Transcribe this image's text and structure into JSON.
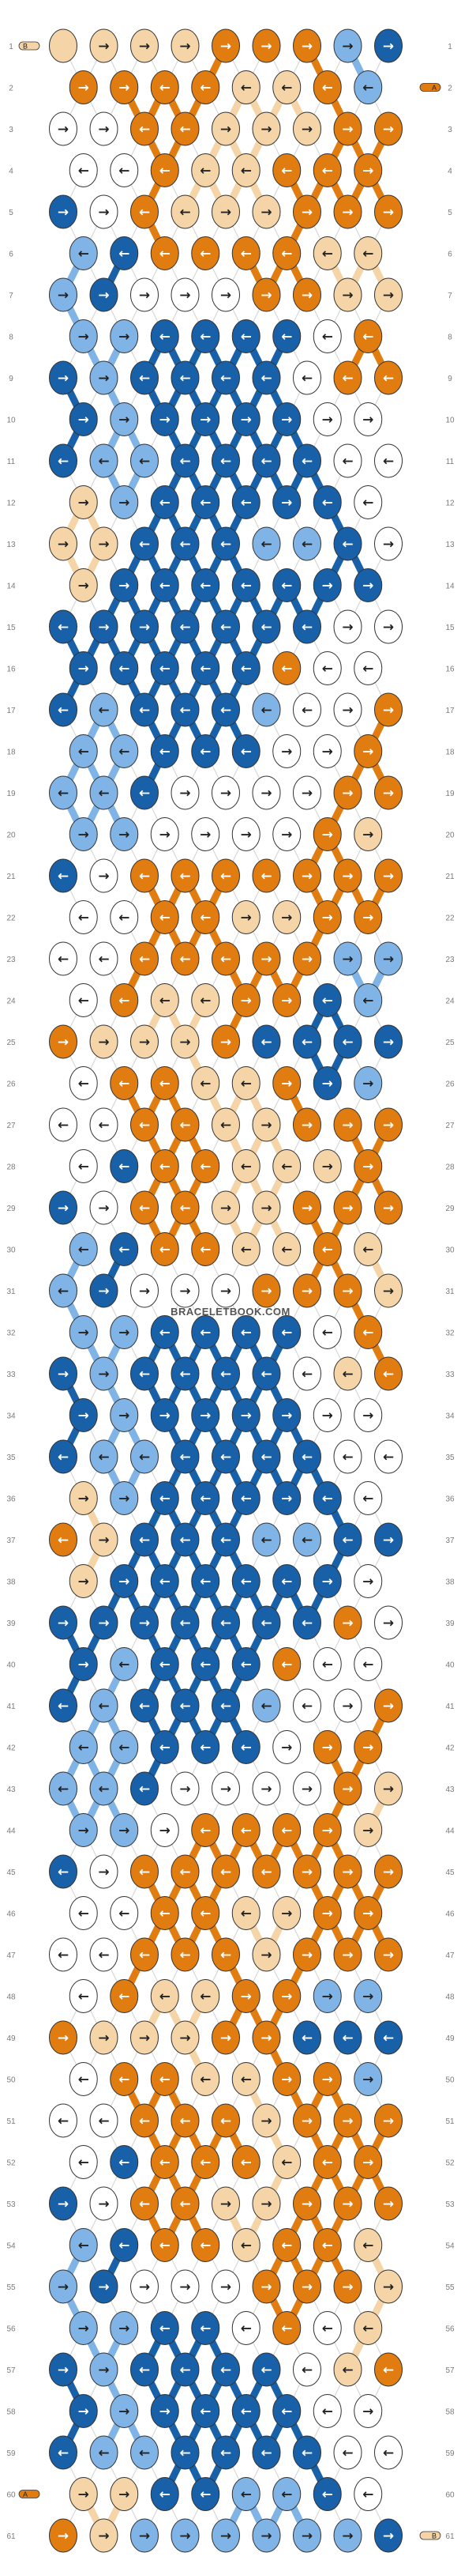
{
  "pattern": {
    "site": "BRACELETBOOK.COM",
    "rows": 61,
    "columns": 9,
    "left_end_markers": [
      {
        "row": 1,
        "label": "B"
      },
      {
        "row": 60,
        "label": "A"
      }
    ],
    "right_end_markers": [
      {
        "row": 2,
        "label": "A"
      },
      {
        "row": 61,
        "label": "B"
      }
    ],
    "colors": {
      "A": "#e07c10",
      "B": "#f5d5a8",
      "C": "#ffffff",
      "D": "#80b4e6",
      "E": "#1860a8"
    },
    "arrow_glyphs": {
      "R": "→",
      "L": "←"
    },
    "rows_data": [
      "BA BR BR BR AR AR AR DR ER",
      "AR AR AL AL BL BL AL DL",
      "CR CR AL AL BR BR BR AR AR",
      "CL CL AL BL BL AL AL AR",
      "ER CR AL BL BR BR AR AR AR",
      "DL EL AL AL AL AL BL BL",
      "DR ER CR CR CR AR AR BR BR",
      "DR DR EL EL EL EL CL AL",
      "ER DR EL EL EL EL CL AL AL",
      "ER DR ER ER ER ER CR CR",
      "EL DL DL EL EL EL EL CL CL",
      "BR DR EL EL EL ER EL CL",
      "BR BR EL EL EL DL DL EL CR",
      "BR ER EL EL EL EL ER ER",
      "EL ER ER EL EL EL EL CR CR",
      "ER EL EL EL EL AL CL CL",
      "EL DL EL EL EL DL CL CR AR",
      "DL DL EL EL EL CR CR AR",
      "DL DL EL CR CR CR CR AR AR",
      "DR DR CR CR CR CR AR BR",
      "EL CR AL AL AL AL AR AR AR",
      "CL CL AL AL BR BR AR AR",
      "CL CL AL AL AL AR AR DR DR",
      "CL AL BL BL AR AR EL DL",
      "AR BR BR BR AR EL EL EL ER",
      "CL AL AL BL BL AR ER DR",
      "CL CL AL AL BL BR AR AR AR",
      "CL EL AL AL BL BL BR AR",
      "ER CR AL AL BR BR AR AR AR",
      "DL EL AL AL BL BL AL BL",
      "DL ER CR CR CR AR AR AR BR",
      "DR DR EL EL EL EL CL AL",
      "ER DR EL EL EL EL CL BL AL",
      "ER DR ER ER ER ER CR CR",
      "EL DL DL EL EL EL EL CL CL",
      "BR DR EL EL EL ER EL CL",
      "AL BR EL EL EL DL DL EL ER",
      "BR ER EL EL EL EL ER CR",
      "ER ER ER EL EL EL EL AR CR",
      "ER DL EL EL EL AL CL CL",
      "EL DL EL EL EL DL CL CR AR",
      "DL DL EL EL EL CR AR AR",
      "DL DL EL CR CR CR CR AR BR",
      "DR DR CR AL AL AL AR BR",
      "EL CR AL AL AL AL AR AR AR",
      "CL CL AL AL BL BR AR AR",
      "CL CL AL AL AL BR AR AR AR",
      "CL AL BL BL AR AR DR DR",
      "AR BR BR BR AR AR EL EL EL",
      "CL AL AL BL BL AR AR DR",
      "CL CL AL AL AL BR AR AR AR",
      "CL EL AL AL AL BL AL AR",
      "ER CR AL AL BR BR AR AR AR",
      "DL EL AL AL BL AL AL BL",
      "DR ER CR CR CR AR AR AR BR",
      "DR DR EL EL CL AL CL BL",
      "ER DR EL EL EL EL CL BL AL",
      "ER DR ER EL EL EL CL CR",
      "EL DL DL EL EL EL EL CL CL",
      "BR BR EL EL DL DL EL CL",
      "AR BR DR DR DR DR DR DR ER"
    ]
  }
}
